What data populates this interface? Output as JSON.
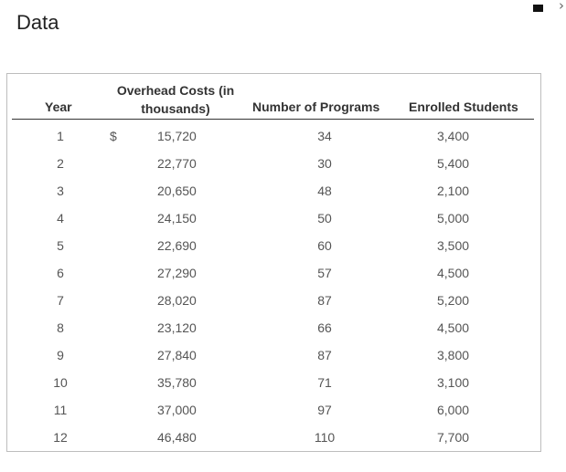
{
  "page": {
    "title": "Data"
  },
  "window": {
    "corner_glyph": "›"
  },
  "table": {
    "headers": {
      "year": "Year",
      "overhead": "Overhead Costs (in thousands)",
      "programs": "Number of Programs",
      "students": "Enrolled Students"
    },
    "currency_symbol": "$",
    "rows": [
      {
        "year": "1",
        "overhead": "15,720",
        "programs": "34",
        "students": "3,400"
      },
      {
        "year": "2",
        "overhead": "22,770",
        "programs": "30",
        "students": "5,400"
      },
      {
        "year": "3",
        "overhead": "20,650",
        "programs": "48",
        "students": "2,100"
      },
      {
        "year": "4",
        "overhead": "24,150",
        "programs": "50",
        "students": "5,000"
      },
      {
        "year": "5",
        "overhead": "22,690",
        "programs": "60",
        "students": "3,500"
      },
      {
        "year": "6",
        "overhead": "27,290",
        "programs": "57",
        "students": "4,500"
      },
      {
        "year": "7",
        "overhead": "28,020",
        "programs": "87",
        "students": "5,200"
      },
      {
        "year": "8",
        "overhead": "23,120",
        "programs": "66",
        "students": "4,500"
      },
      {
        "year": "9",
        "overhead": "27,840",
        "programs": "87",
        "students": "3,800"
      },
      {
        "year": "10",
        "overhead": "35,780",
        "programs": "71",
        "students": "3,100"
      },
      {
        "year": "11",
        "overhead": "37,000",
        "programs": "97",
        "students": "6,000"
      },
      {
        "year": "12",
        "overhead": "46,480",
        "programs": "110",
        "students": "7,700"
      }
    ]
  }
}
